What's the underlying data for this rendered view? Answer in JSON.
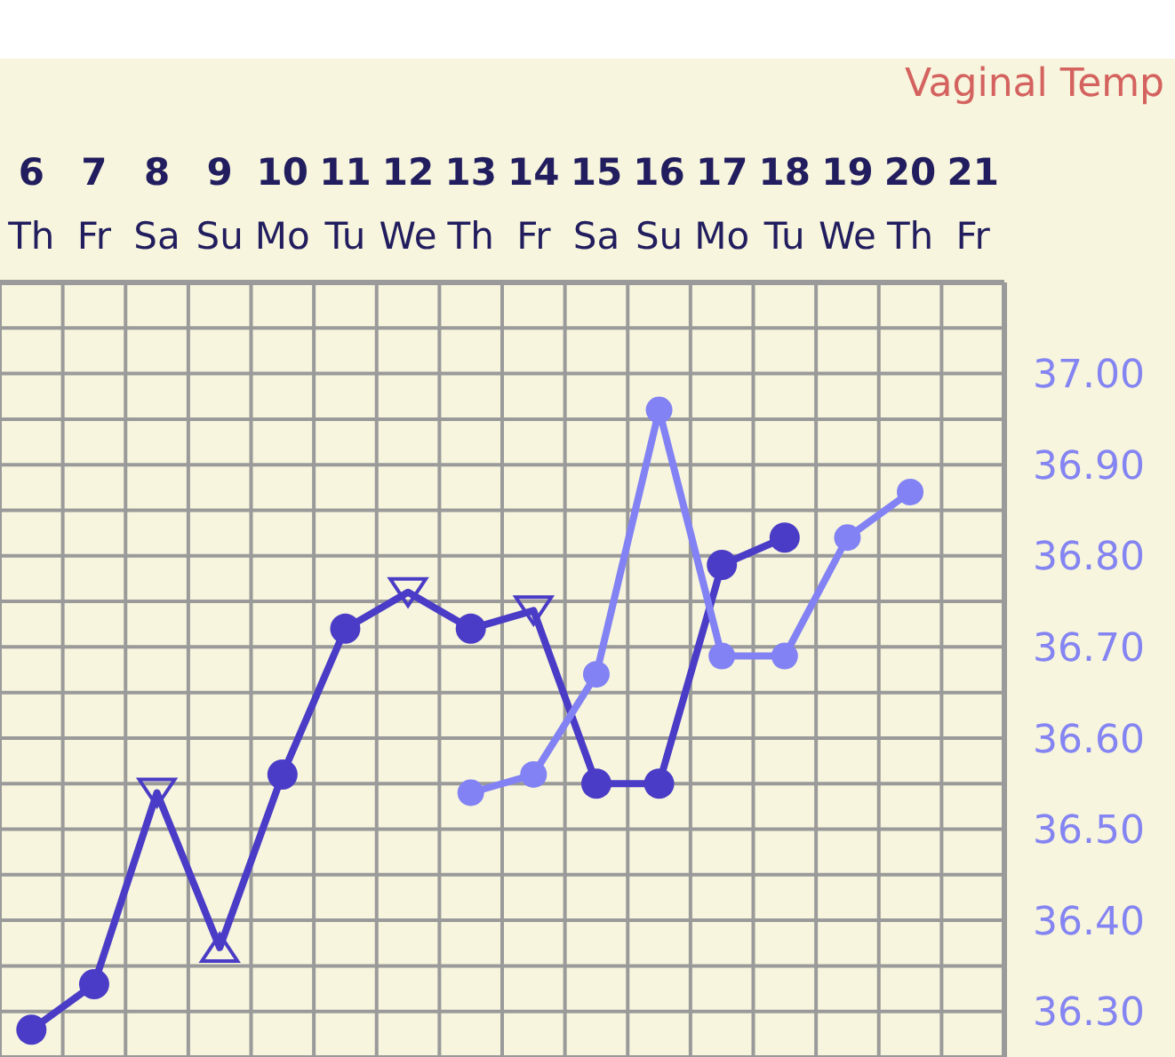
{
  "chart_data": {
    "type": "line",
    "categories": [
      "6\nTh",
      "7\nFr",
      "8\nSa",
      "9\nSu",
      "10\nMo",
      "11\nTu",
      "12\nWe",
      "13\nTh",
      "14\nFr",
      "15\nSa",
      "16\nSu",
      "17\nMo",
      "18\nTu",
      "19\nWe",
      "20\nTh",
      "21\nFr"
    ],
    "series": [
      {
        "type": "line",
        "color": "#4a3cc6",
        "marker": "none",
        "values": [
          36.28,
          36.33,
          36.54,
          36.37,
          36.56,
          36.72,
          36.76,
          36.72,
          36.74,
          36.55,
          36.55,
          36.79,
          36.82,
          null,
          null,
          null
        ]
      },
      {
        "type": "scatter",
        "color": "#4a3cc6",
        "marker": "circle",
        "values": [
          36.28,
          36.33,
          null,
          null,
          36.56,
          36.72,
          null,
          36.72,
          null,
          36.55,
          36.55,
          36.79,
          36.82,
          null,
          null,
          null
        ]
      },
      {
        "type": "scatter",
        "color": "#4a3cc6",
        "marker": "triangle_down",
        "values": [
          null,
          null,
          36.54,
          null,
          null,
          null,
          36.76,
          null,
          36.74,
          null,
          null,
          null,
          null,
          null,
          null,
          null
        ]
      },
      {
        "type": "scatter",
        "color": "#4a3cc6",
        "marker": "triangle",
        "values": [
          null,
          null,
          null,
          36.37,
          null,
          null,
          null,
          null,
          null,
          null,
          null,
          null,
          null,
          null,
          null,
          null
        ]
      },
      {
        "type": "line",
        "color": "#8282f4",
        "marker": "circle",
        "values": [
          null,
          null,
          null,
          null,
          null,
          null,
          null,
          36.54,
          36.56,
          36.67,
          36.96,
          36.69,
          36.69,
          36.82,
          36.87,
          null
        ]
      }
    ],
    "ylim": [
      36.25,
      37.1
    ],
    "yticks": [
      {
        "value": 36.3,
        "label": "36.30"
      },
      {
        "value": 36.35,
        "label": null
      },
      {
        "value": 36.4,
        "label": "36.40"
      },
      {
        "value": 36.45,
        "label": null
      },
      {
        "value": 36.5,
        "label": "36.50"
      },
      {
        "value": 36.55,
        "label": null
      },
      {
        "value": 36.6,
        "label": "36.60"
      },
      {
        "value": 36.65,
        "label": null
      },
      {
        "value": 36.7,
        "label": "36.70"
      },
      {
        "value": 36.75,
        "label": null
      },
      {
        "value": 36.8,
        "label": "36.80"
      },
      {
        "value": 36.85,
        "label": null
      },
      {
        "value": 36.9,
        "label": "36.90"
      },
      {
        "value": 36.95,
        "label": null
      },
      {
        "value": 37.0,
        "label": "37.00"
      },
      {
        "value": 37.05,
        "label": null
      }
    ],
    "grid": true,
    "annotations": [
      "Vaginal Temp"
    ]
  }
}
